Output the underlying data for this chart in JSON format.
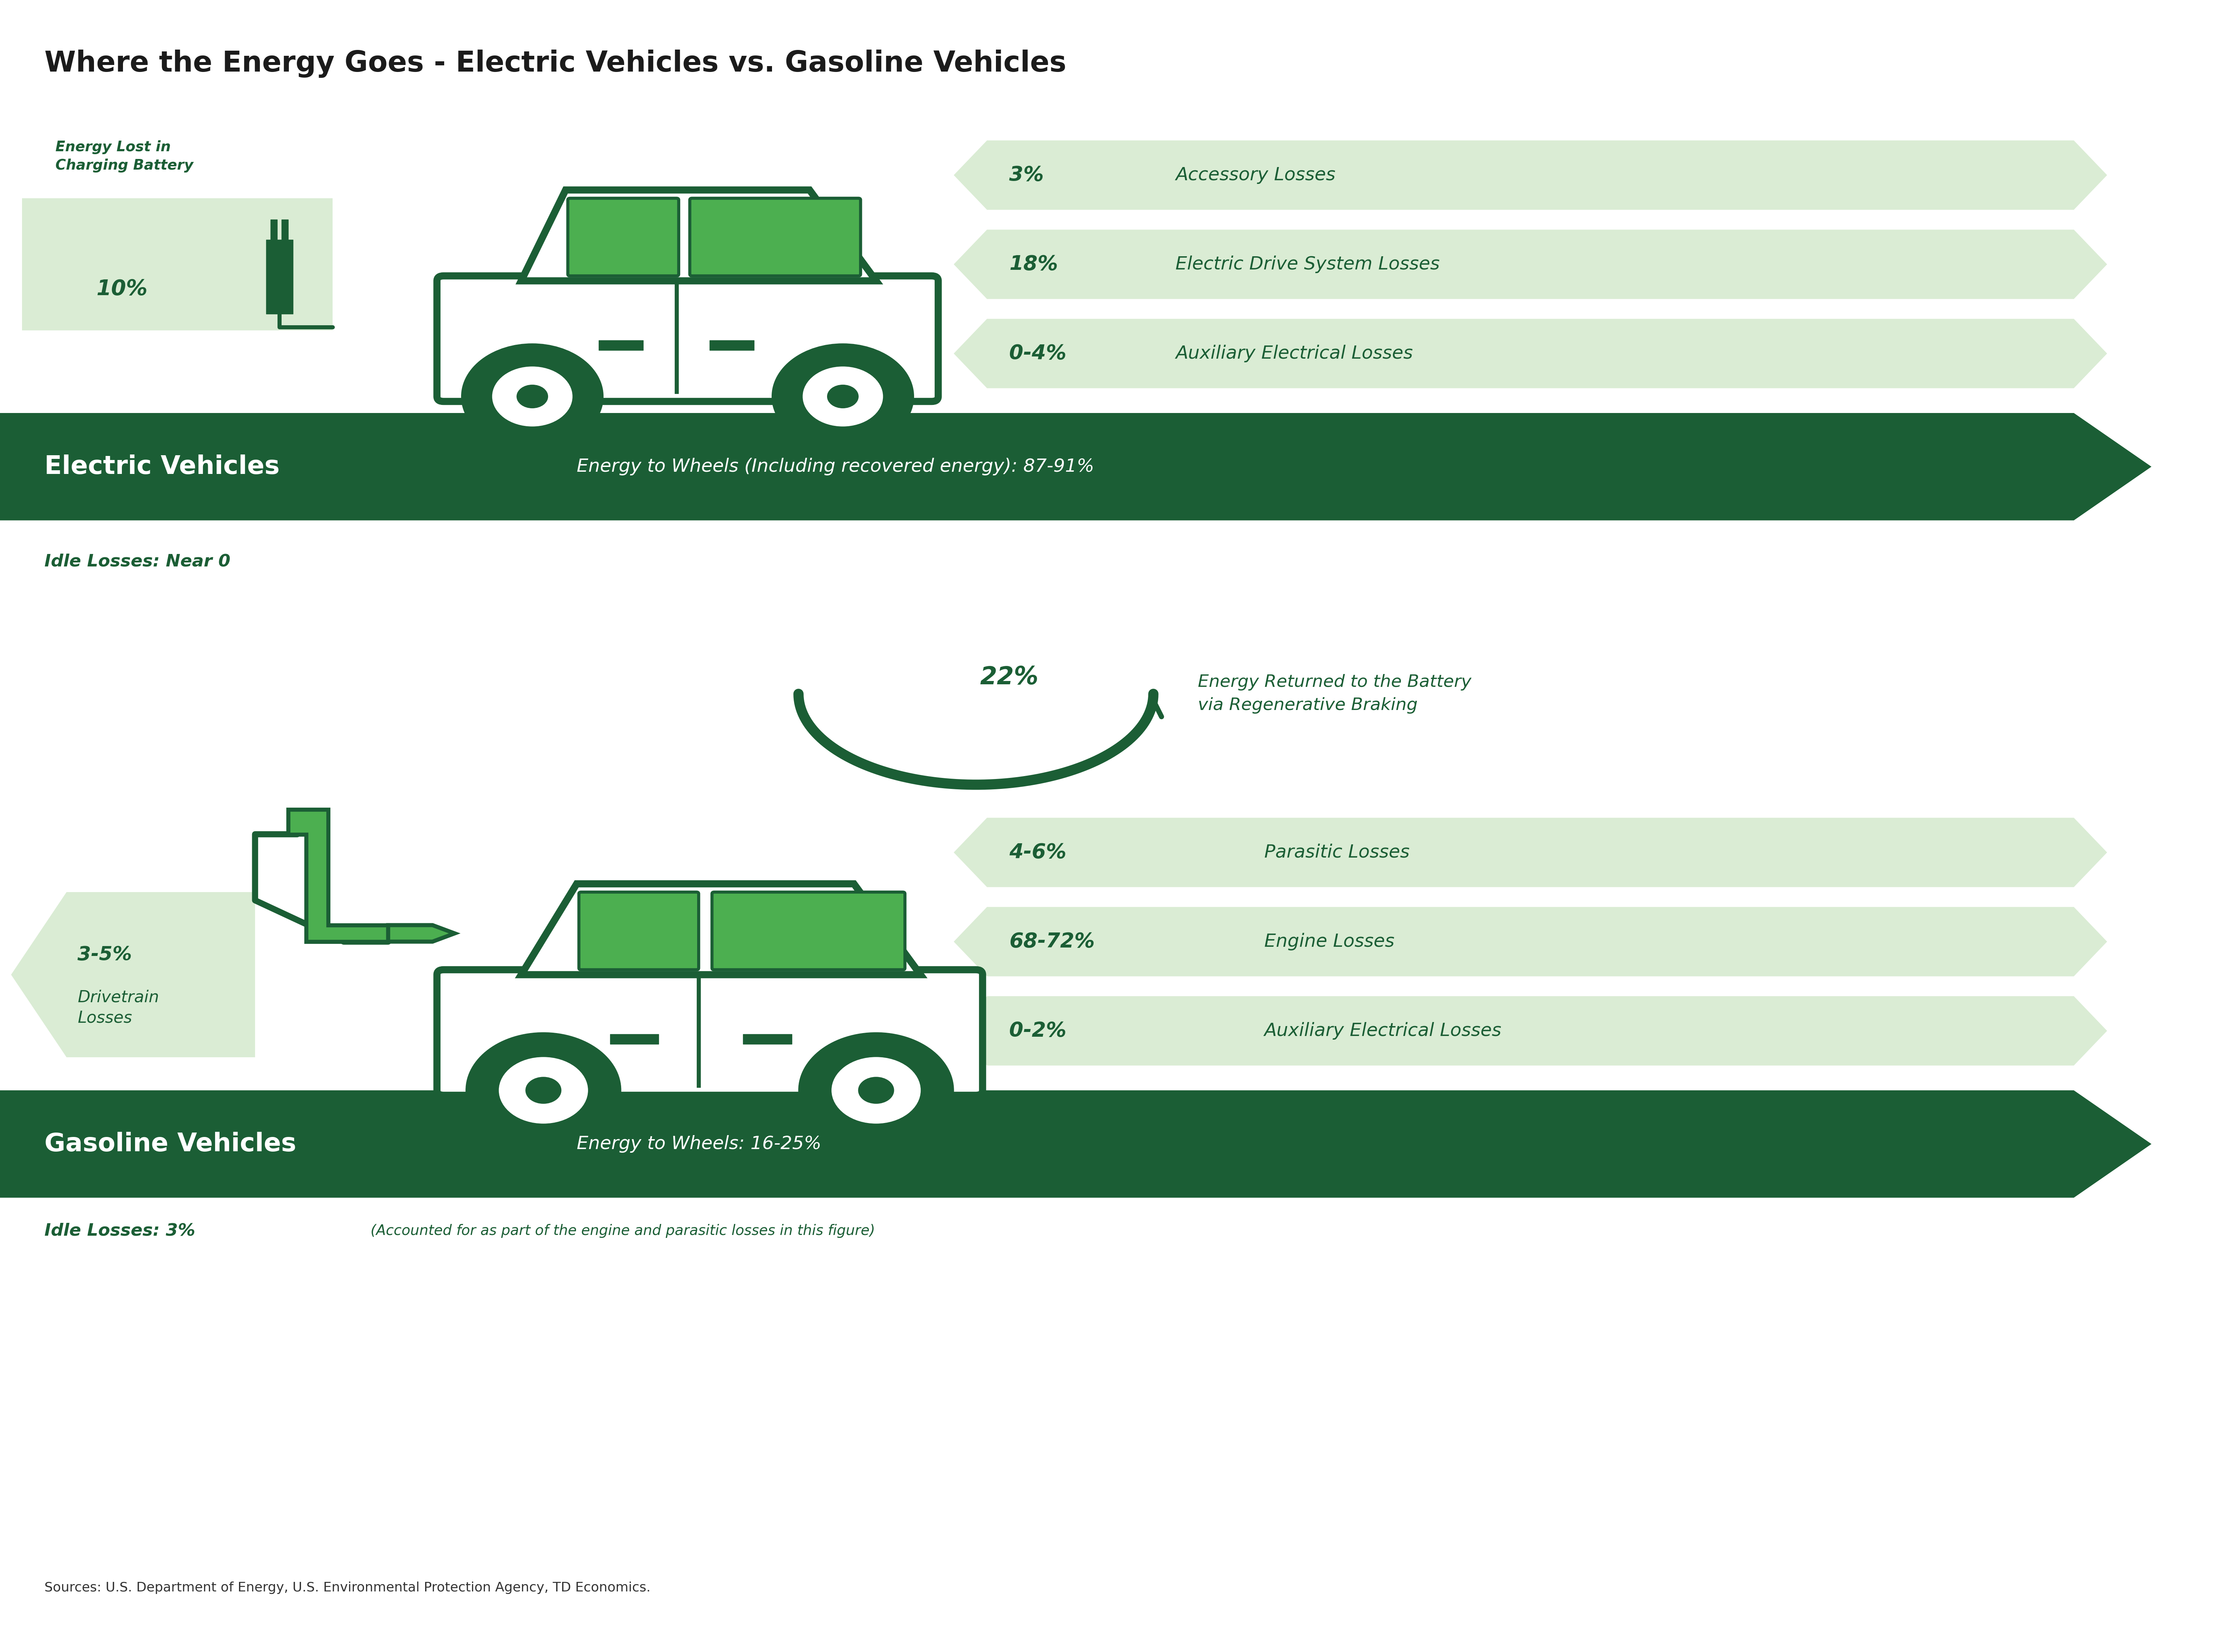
{
  "title": "Where the Energy Goes - Electric Vehicles vs. Gasoline Vehicles",
  "bg_color": "#ffffff",
  "dark_green": "#1b5e35",
  "light_green": "#daecd4",
  "bright_green": "#4caf50",
  "text_dark": "#1b1b1b",
  "ev_section": {
    "label": "Electric Vehicles",
    "arrow_text": "Energy to Wheels (Including recovered energy): 87-91%",
    "charging_label": "Energy Lost in\nCharging Battery",
    "charging_pct": "10%",
    "idle_label": "Idle Losses: Near 0",
    "regen_pct": "22%",
    "regen_label": "Energy Returned to the Battery\nvia Regenerative Braking",
    "losses": [
      {
        "pct": "3%",
        "label": "Accessory Losses"
      },
      {
        "pct": "18%",
        "label": "Electric Drive System Losses"
      },
      {
        "pct": "0-4%",
        "label": "Auxiliary Electrical Losses"
      }
    ]
  },
  "gas_section": {
    "label": "Gasoline Vehicles",
    "arrow_text": "Energy to Wheels: 16-25%",
    "drivetrain_pct": "3-5%",
    "drivetrain_label": "Drivetrain\nLosses",
    "idle_label": "Idle Losses: 3%",
    "idle_sublabel": " (Accounted for as part of the engine and parasitic losses in this figure)",
    "losses": [
      {
        "pct": "4-6%",
        "label": "Parasitic Losses"
      },
      {
        "pct": "68-72%",
        "label": "Engine Losses"
      },
      {
        "pct": "0-2%",
        "label": "Auxiliary Electrical Losses"
      }
    ]
  },
  "sources": "Sources: U.S. Department of Energy, U.S. Environmental Protection Agency, TD Economics."
}
